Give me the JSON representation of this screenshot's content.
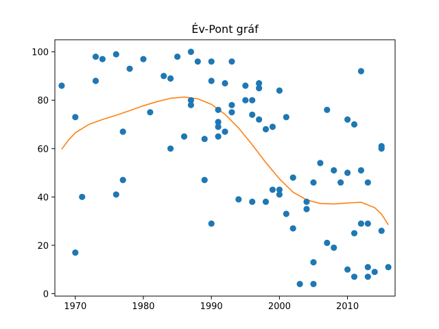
{
  "chart_data": {
    "type": "scatter",
    "title": "Év-Pont gráf",
    "xlabel": "",
    "ylabel": "",
    "xlim": [
      1967,
      2017
    ],
    "ylim": [
      -1,
      105
    ],
    "x_ticks": [
      1970,
      1980,
      1990,
      2000,
      2010
    ],
    "y_ticks": [
      0,
      20,
      40,
      60,
      80,
      100
    ],
    "grid": false,
    "colors": {
      "points": "#1f77b4",
      "trend": "#ff7f0e"
    },
    "points": [
      {
        "x": 1968,
        "y": 86
      },
      {
        "x": 1970,
        "y": 73
      },
      {
        "x": 1970,
        "y": 17
      },
      {
        "x": 1971,
        "y": 40
      },
      {
        "x": 1973,
        "y": 98
      },
      {
        "x": 1973,
        "y": 88
      },
      {
        "x": 1974,
        "y": 97
      },
      {
        "x": 1976,
        "y": 99
      },
      {
        "x": 1976,
        "y": 41
      },
      {
        "x": 1977,
        "y": 67
      },
      {
        "x": 1977,
        "y": 47
      },
      {
        "x": 1978,
        "y": 93
      },
      {
        "x": 1980,
        "y": 97
      },
      {
        "x": 1981,
        "y": 75
      },
      {
        "x": 1983,
        "y": 90
      },
      {
        "x": 1984,
        "y": 89
      },
      {
        "x": 1984,
        "y": 60
      },
      {
        "x": 1985,
        "y": 98
      },
      {
        "x": 1986,
        "y": 65
      },
      {
        "x": 1987,
        "y": 100
      },
      {
        "x": 1987,
        "y": 80
      },
      {
        "x": 1987,
        "y": 78
      },
      {
        "x": 1988,
        "y": 96
      },
      {
        "x": 1989,
        "y": 64
      },
      {
        "x": 1989,
        "y": 47
      },
      {
        "x": 1990,
        "y": 96
      },
      {
        "x": 1990,
        "y": 88
      },
      {
        "x": 1990,
        "y": 29
      },
      {
        "x": 1991,
        "y": 76
      },
      {
        "x": 1991,
        "y": 71
      },
      {
        "x": 1991,
        "y": 69
      },
      {
        "x": 1991,
        "y": 65
      },
      {
        "x": 1992,
        "y": 87
      },
      {
        "x": 1992,
        "y": 67
      },
      {
        "x": 1993,
        "y": 96
      },
      {
        "x": 1993,
        "y": 78
      },
      {
        "x": 1993,
        "y": 75
      },
      {
        "x": 1994,
        "y": 39
      },
      {
        "x": 1995,
        "y": 86
      },
      {
        "x": 1995,
        "y": 80
      },
      {
        "x": 1996,
        "y": 80
      },
      {
        "x": 1996,
        "y": 74
      },
      {
        "x": 1996,
        "y": 38
      },
      {
        "x": 1997,
        "y": 87
      },
      {
        "x": 1997,
        "y": 85
      },
      {
        "x": 1997,
        "y": 72
      },
      {
        "x": 1998,
        "y": 68
      },
      {
        "x": 1998,
        "y": 38
      },
      {
        "x": 1999,
        "y": 69
      },
      {
        "x": 1999,
        "y": 43
      },
      {
        "x": 2000,
        "y": 84
      },
      {
        "x": 2000,
        "y": 43
      },
      {
        "x": 2000,
        "y": 41
      },
      {
        "x": 2001,
        "y": 73
      },
      {
        "x": 2001,
        "y": 33
      },
      {
        "x": 2002,
        "y": 48
      },
      {
        "x": 2002,
        "y": 27
      },
      {
        "x": 2003,
        "y": 4
      },
      {
        "x": 2004,
        "y": 38
      },
      {
        "x": 2004,
        "y": 35
      },
      {
        "x": 2005,
        "y": 46
      },
      {
        "x": 2005,
        "y": 13
      },
      {
        "x": 2005,
        "y": 4
      },
      {
        "x": 2006,
        "y": 54
      },
      {
        "x": 2007,
        "y": 76
      },
      {
        "x": 2007,
        "y": 21
      },
      {
        "x": 2008,
        "y": 51
      },
      {
        "x": 2008,
        "y": 19
      },
      {
        "x": 2009,
        "y": 46
      },
      {
        "x": 2010,
        "y": 72
      },
      {
        "x": 2010,
        "y": 50
      },
      {
        "x": 2010,
        "y": 10
      },
      {
        "x": 2011,
        "y": 70
      },
      {
        "x": 2011,
        "y": 25
      },
      {
        "x": 2011,
        "y": 7
      },
      {
        "x": 2012,
        "y": 92
      },
      {
        "x": 2012,
        "y": 51
      },
      {
        "x": 2012,
        "y": 29
      },
      {
        "x": 2013,
        "y": 46
      },
      {
        "x": 2013,
        "y": 29
      },
      {
        "x": 2013,
        "y": 11
      },
      {
        "x": 2013,
        "y": 7
      },
      {
        "x": 2014,
        "y": 9
      },
      {
        "x": 2015,
        "y": 61
      },
      {
        "x": 2015,
        "y": 60
      },
      {
        "x": 2015,
        "y": 26
      },
      {
        "x": 2016,
        "y": 11
      }
    ],
    "trend_line": [
      {
        "x": 1968,
        "y": 59.7
      },
      {
        "x": 1969,
        "y": 63.5
      },
      {
        "x": 1970,
        "y": 66.5
      },
      {
        "x": 1972,
        "y": 70
      },
      {
        "x": 1974,
        "y": 72
      },
      {
        "x": 1976,
        "y": 73.8
      },
      {
        "x": 1978,
        "y": 75.7
      },
      {
        "x": 1980,
        "y": 77.7
      },
      {
        "x": 1982,
        "y": 79.4
      },
      {
        "x": 1984,
        "y": 80.8
      },
      {
        "x": 1986,
        "y": 81.3
      },
      {
        "x": 1988,
        "y": 80.6
      },
      {
        "x": 1990,
        "y": 78.3
      },
      {
        "x": 1992,
        "y": 74.2
      },
      {
        "x": 1994,
        "y": 68.5
      },
      {
        "x": 1996,
        "y": 61.6
      },
      {
        "x": 1998,
        "y": 54.2
      },
      {
        "x": 2000,
        "y": 47.5
      },
      {
        "x": 2002,
        "y": 42
      },
      {
        "x": 2004,
        "y": 38.8
      },
      {
        "x": 2006,
        "y": 37.3
      },
      {
        "x": 2008,
        "y": 37.1
      },
      {
        "x": 2010,
        "y": 37.5
      },
      {
        "x": 2012,
        "y": 37.8
      },
      {
        "x": 2014,
        "y": 35.6
      },
      {
        "x": 2015,
        "y": 32.9
      },
      {
        "x": 2016,
        "y": 28.5
      }
    ]
  }
}
